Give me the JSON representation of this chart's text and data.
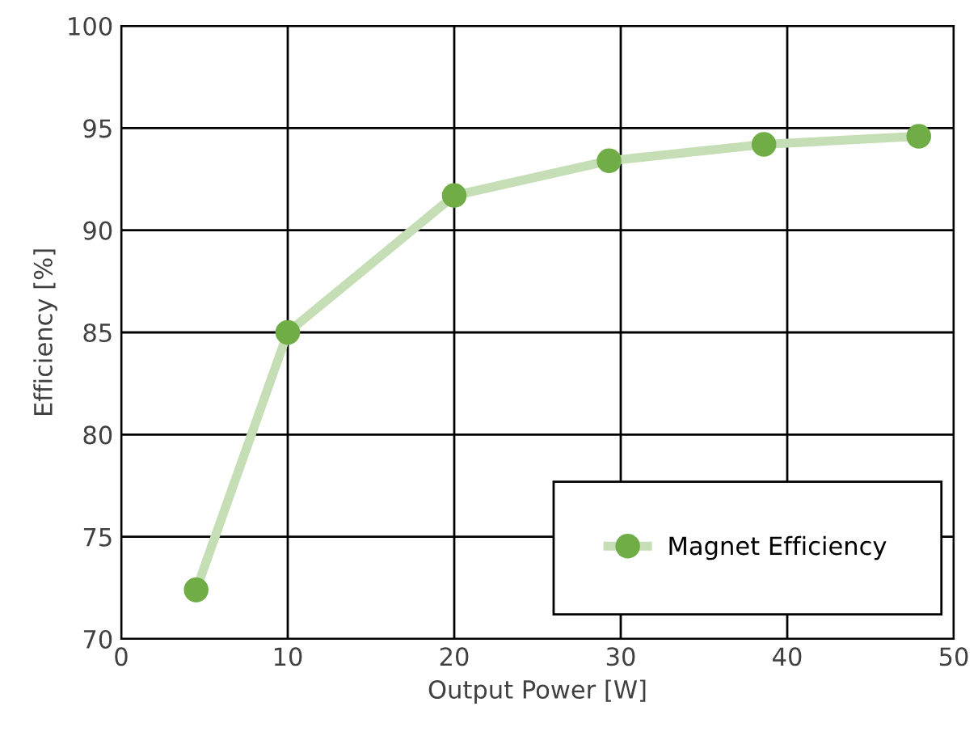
{
  "chart_data": {
    "type": "line",
    "xlabel": "Output Power [W]",
    "ylabel": "Efficiency [%]",
    "xlim": [
      0,
      50
    ],
    "xticks": [
      0,
      10,
      20,
      30,
      40,
      50
    ],
    "ylim": [
      70,
      100
    ],
    "yticks": [
      70,
      75,
      80,
      85,
      90,
      95,
      100
    ],
    "grid": true,
    "legend": "bottom right",
    "marker": "circle",
    "line_style": "solid",
    "series": [
      {
        "name": "Magnet Efficiency",
        "color": "#70ad47",
        "x": [
          4.5,
          10.0,
          20.0,
          29.3,
          38.6,
          47.9
        ],
        "values": [
          72.4,
          85.0,
          91.7,
          93.4,
          94.2,
          94.6
        ]
      }
    ]
  }
}
